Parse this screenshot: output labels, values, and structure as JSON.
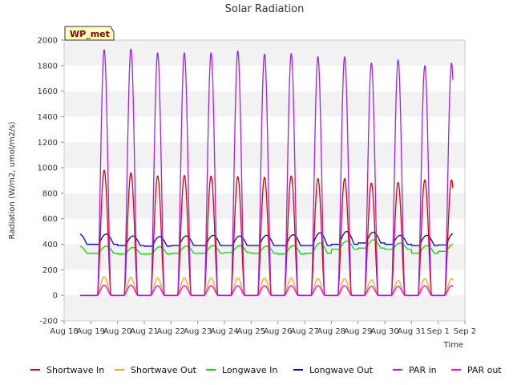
{
  "chart_data": {
    "type": "line",
    "title": "Solar Radiation",
    "xlabel": "Time",
    "ylabel": "Radiation (W/m2, umol/m2/s)",
    "station_label": "WP_met",
    "ylim": [
      -200,
      2000
    ],
    "xlim": [
      0,
      15
    ],
    "yticks": [
      -200,
      0,
      200,
      400,
      600,
      800,
      1000,
      1200,
      1400,
      1600,
      1800,
      2000
    ],
    "x_tick_labels": [
      "Aug 18",
      "Aug 19",
      "Aug 20",
      "Aug 21",
      "Aug 22",
      "Aug 23",
      "Aug 24",
      "Aug 25",
      "Aug 26",
      "Aug 27",
      "Aug 28",
      "Aug 29",
      "Aug 30",
      "Aug 31",
      "Sep 1",
      "Sep 2"
    ],
    "grid": "horizontal bands",
    "legend_position": "bottom",
    "day_peaks": {
      "days": [
        "Aug 19",
        "Aug 20",
        "Aug 21",
        "Aug 22",
        "Aug 23",
        "Aug 24",
        "Aug 25",
        "Aug 26",
        "Aug 27",
        "Aug 28",
        "Aug 29",
        "Aug 30",
        "Aug 31",
        "Sep 1"
      ]
    },
    "series": [
      {
        "name": "Shortwave In",
        "color": "#dd0000",
        "kind": "diurnal",
        "night": 0,
        "peaks": [
          980,
          960,
          935,
          940,
          935,
          930,
          925,
          935,
          915,
          915,
          880,
          885,
          905,
          905
        ]
      },
      {
        "name": "Shortwave Out",
        "color": "#ffa500",
        "kind": "diurnal",
        "night": 0,
        "peaks": [
          145,
          140,
          135,
          135,
          135,
          135,
          135,
          135,
          130,
          130,
          120,
          115,
          130,
          130
        ]
      },
      {
        "name": "Longwave In",
        "color": "#00e000",
        "kind": "baseline",
        "base": [
          330,
          325,
          325,
          330,
          330,
          335,
          330,
          325,
          330,
          360,
          370,
          360,
          330,
          345
        ],
        "peaks": [
          385,
          375,
          380,
          385,
          390,
          390,
          385,
          390,
          410,
          425,
          435,
          410,
          390,
          400
        ]
      },
      {
        "name": "Longwave Out",
        "color": "#0000cc",
        "kind": "baseline",
        "base": [
          400,
          390,
          385,
          390,
          390,
          390,
          390,
          390,
          390,
          400,
          410,
          400,
          390,
          395
        ],
        "peaks": [
          480,
          465,
          460,
          465,
          470,
          465,
          470,
          475,
          490,
          500,
          495,
          470,
          470,
          485
        ]
      },
      {
        "name": "PAR in",
        "color": "#a020f0",
        "kind": "diurnal",
        "night": 0,
        "peaks": [
          1925,
          1930,
          1900,
          1900,
          1900,
          1915,
          1890,
          1895,
          1870,
          1870,
          1820,
          1845,
          1800,
          1820
        ]
      },
      {
        "name": "PAR out",
        "color": "#ff00ff",
        "kind": "diurnal",
        "night": 0,
        "peaks": [
          80,
          80,
          75,
          75,
          75,
          75,
          75,
          75,
          75,
          75,
          70,
          70,
          75,
          75
        ]
      }
    ]
  }
}
